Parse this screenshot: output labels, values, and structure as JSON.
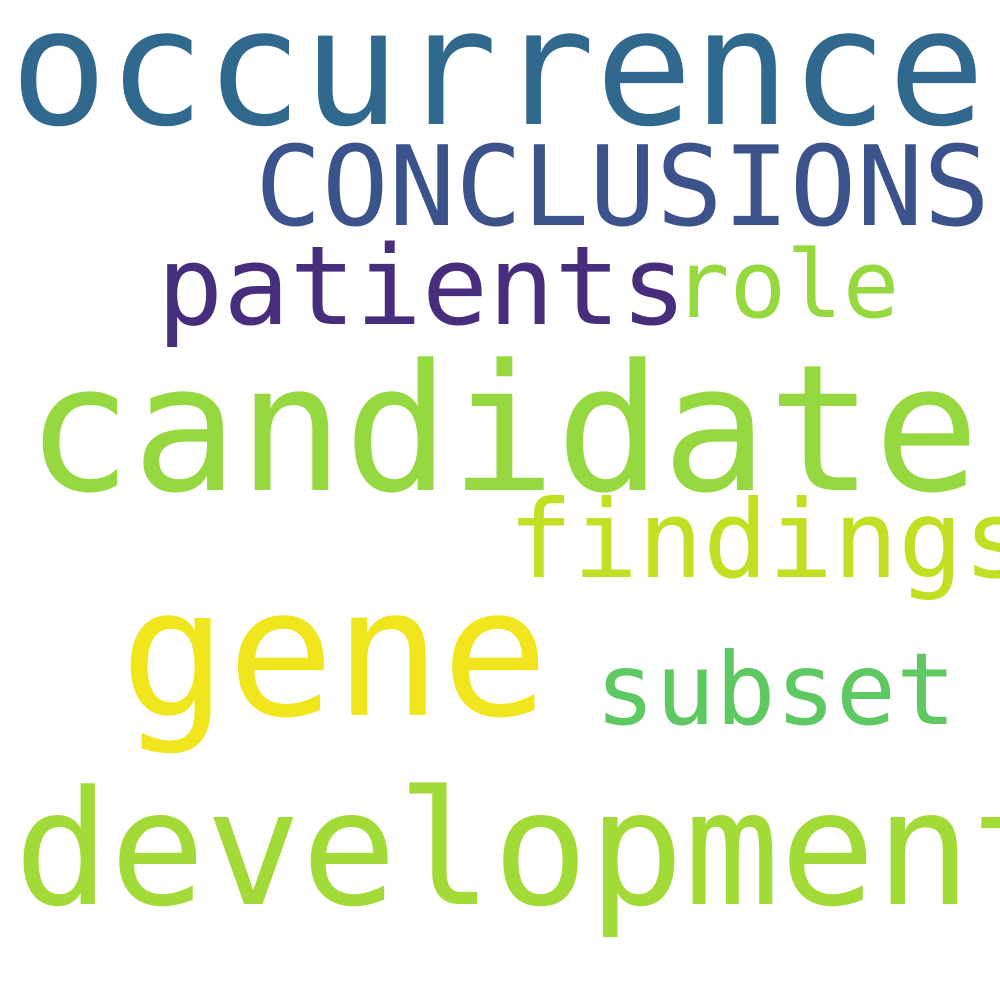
{
  "words": [
    {
      "key": "occurrence",
      "text": "occurrence",
      "color": "#31688e"
    },
    {
      "key": "conclusions",
      "text": "CONCLUSIONS",
      "color": "#3b528b"
    },
    {
      "key": "patients",
      "text": "patients",
      "color": "#472d7b"
    },
    {
      "key": "role",
      "text": "role",
      "color": "#95d840"
    },
    {
      "key": "candidate",
      "text": "candidate",
      "color": "#95d840"
    },
    {
      "key": "findings",
      "text": "findings",
      "color": "#c2df23"
    },
    {
      "key": "gene",
      "text": "gene",
      "color": "#f1e51d"
    },
    {
      "key": "subset",
      "text": "subset",
      "color": "#5ec962"
    },
    {
      "key": "development",
      "text": "development",
      "color": "#a2da37"
    }
  ]
}
